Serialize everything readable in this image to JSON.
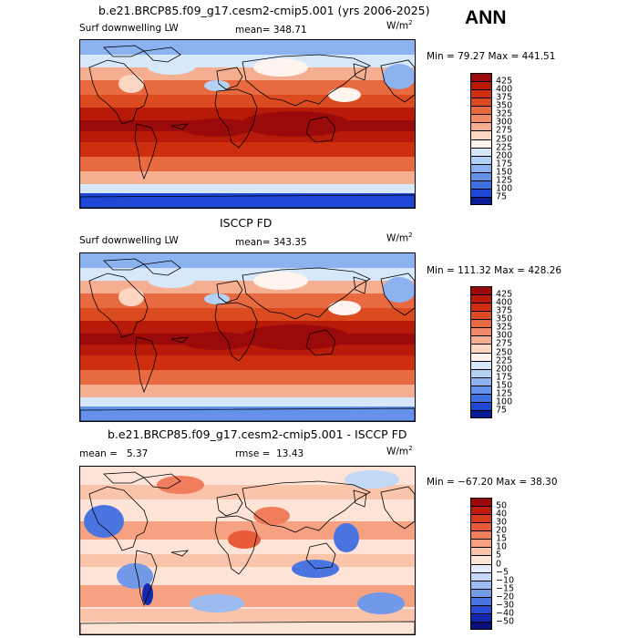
{
  "season": "ANN",
  "panels": [
    {
      "id": "model",
      "title": "b.e21.BRCP85.f09_g17.cesm2-cmip5.001 (yrs 2006-2025)",
      "left_label": "Surf downwelling LW",
      "stat_label": "mean=",
      "stat_value": "348.71",
      "stat2_label": "",
      "stat2_value": "",
      "unit": "W/m",
      "unit_exp": "2",
      "minmax": "Min =  79.27 Max = 441.51",
      "levels": [
        "425",
        "400",
        "375",
        "350",
        "325",
        "300",
        "275",
        "250",
        "225",
        "200",
        "175",
        "150",
        "125",
        "100",
        "75"
      ],
      "colors": [
        "#9b0a0a",
        "#b81a0a",
        "#cc2e0e",
        "#dc4a20",
        "#e86a40",
        "#f08a68",
        "#f6ae90",
        "#fbd6c2",
        "#fff4ee",
        "#d8e8fb",
        "#b4d1f6",
        "#8cb2f0",
        "#6691ea",
        "#3e6ee2",
        "#1d47d4",
        "#0c1c96"
      ]
    },
    {
      "id": "obs",
      "title": "ISCCP FD",
      "left_label": "Surf downwelling LW",
      "stat_label": "mean=",
      "stat_value": "343.35",
      "stat2_label": "",
      "stat2_value": "",
      "unit": "W/m",
      "unit_exp": "2",
      "minmax": "Min = 111.32 Max = 428.26",
      "levels": [
        "425",
        "400",
        "375",
        "350",
        "325",
        "300",
        "275",
        "250",
        "225",
        "200",
        "175",
        "150",
        "125",
        "100",
        "75"
      ],
      "colors": [
        "#9b0a0a",
        "#b81a0a",
        "#cc2e0e",
        "#dc4a20",
        "#e86a40",
        "#f08a68",
        "#f6ae90",
        "#fbd6c2",
        "#fff4ee",
        "#d8e8fb",
        "#b4d1f6",
        "#8cb2f0",
        "#6691ea",
        "#3e6ee2",
        "#1d47d4",
        "#0c1c96"
      ]
    },
    {
      "id": "diff",
      "title": "b.e21.BRCP85.f09_g17.cesm2-cmip5.001 - ISCCP FD",
      "left_label": "",
      "stat_label": "mean =",
      "stat_value": "5.37",
      "stat2_label": "rmse =",
      "stat2_value": "13.43",
      "unit": "W/m",
      "unit_exp": "2",
      "minmax": "Min = −67.20 Max =  38.30",
      "levels": [
        "50",
        "40",
        "30",
        "20",
        "15",
        "10",
        "5",
        "0",
        "−5",
        "−10",
        "−15",
        "−20",
        "−30",
        "−40",
        "−50"
      ],
      "colors": [
        "#9b0a0a",
        "#c01a0e",
        "#d83a1c",
        "#e85a38",
        "#f07e5c",
        "#f6a282",
        "#fac4aa",
        "#fde4d6",
        "#e2ecfb",
        "#c2d8f6",
        "#9cbcf0",
        "#7298e8",
        "#4a74e0",
        "#2a4cd2",
        "#1428b0",
        "#081078"
      ]
    }
  ]
}
